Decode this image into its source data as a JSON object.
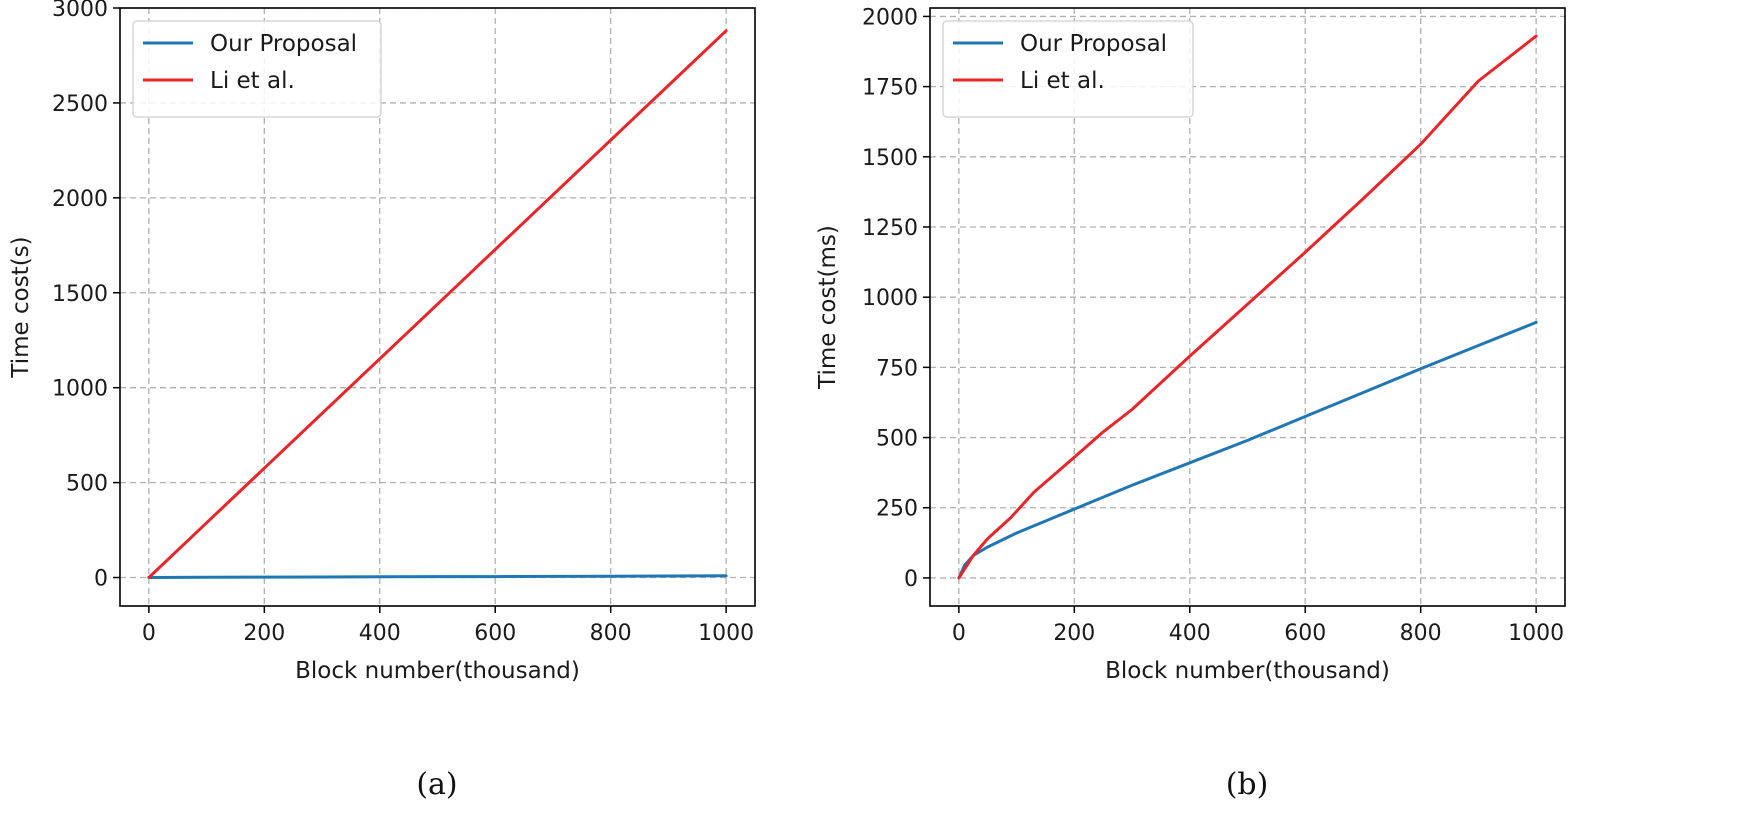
{
  "chart_data": [
    {
      "id": "a",
      "type": "line",
      "caption": "(a)",
      "xlabel": "Block number(thousand)",
      "ylabel": "Time cost(s)",
      "xlim": [
        -50,
        1050
      ],
      "ylim": [
        -150,
        3000
      ],
      "xticks": [
        0,
        200,
        400,
        600,
        800,
        1000
      ],
      "yticks": [
        0,
        500,
        1000,
        1500,
        2000,
        2500,
        3000
      ],
      "grid": true,
      "legend_position": "top-left",
      "series": [
        {
          "name": "Our Proposal",
          "color": "#1f77b4",
          "x": [
            0,
            100,
            200,
            300,
            400,
            500,
            600,
            700,
            800,
            900,
            1000
          ],
          "y": [
            0,
            1,
            2,
            3,
            4,
            5,
            5,
            6,
            7,
            8,
            9
          ]
        },
        {
          "name": "Li et al.",
          "color": "#e8262a",
          "x": [
            0,
            100,
            200,
            300,
            400,
            500,
            600,
            700,
            800,
            900,
            1000
          ],
          "y": [
            0,
            288,
            576,
            864,
            1152,
            1440,
            1728,
            2016,
            2304,
            2592,
            2880
          ]
        }
      ]
    },
    {
      "id": "b",
      "type": "line",
      "caption": "(b)",
      "xlabel": "Block number(thousand)",
      "ylabel": "Time cost(ms)",
      "xlim": [
        -50,
        1050
      ],
      "ylim": [
        -100,
        2030
      ],
      "xticks": [
        0,
        200,
        400,
        600,
        800,
        1000
      ],
      "yticks": [
        0,
        250,
        500,
        750,
        1000,
        1250,
        1500,
        1750,
        2000
      ],
      "grid": true,
      "legend_position": "top-left",
      "series": [
        {
          "name": "Our Proposal",
          "color": "#1f77b4",
          "x": [
            0,
            10,
            25,
            50,
            100,
            200,
            300,
            400,
            500,
            600,
            700,
            800,
            900,
            1000
          ],
          "y": [
            0,
            45,
            80,
            110,
            160,
            245,
            330,
            410,
            490,
            575,
            660,
            745,
            828,
            910
          ]
        },
        {
          "name": "Li et al.",
          "color": "#e8262a",
          "x": [
            0,
            25,
            50,
            90,
            130,
            200,
            250,
            300,
            400,
            500,
            600,
            700,
            800,
            900,
            1000
          ],
          "y": [
            0,
            80,
            140,
            215,
            305,
            430,
            520,
            600,
            790,
            975,
            1160,
            1350,
            1545,
            1770,
            1930
          ]
        }
      ]
    }
  ]
}
